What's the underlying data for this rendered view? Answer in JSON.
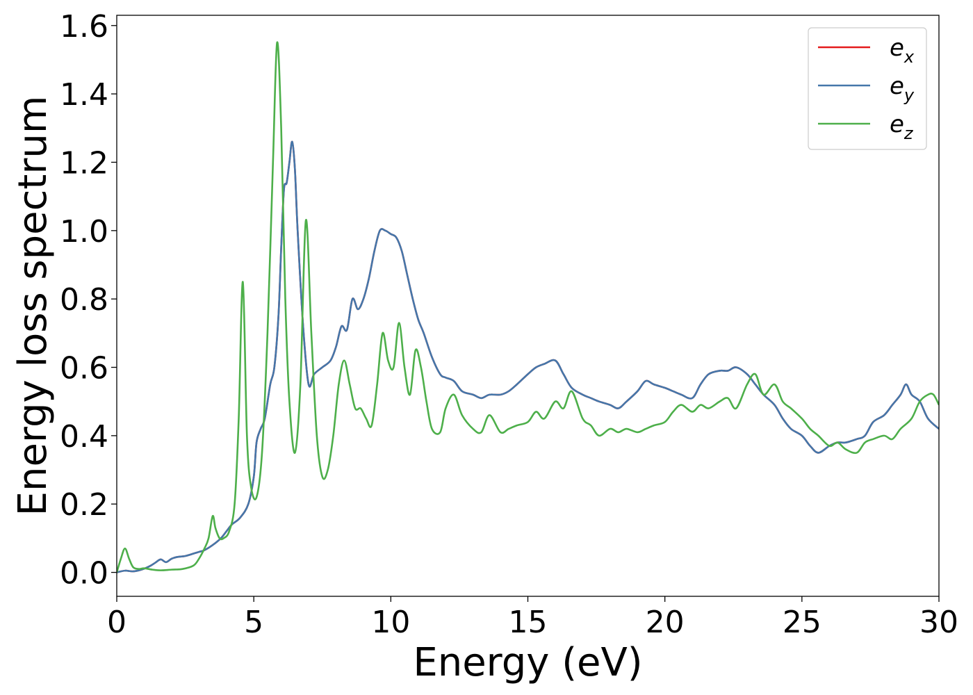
{
  "chart_data": {
    "type": "line",
    "title": "",
    "xlabel": "Energy (eV)",
    "ylabel": "Energy loss spectrum",
    "xlim": [
      0,
      30
    ],
    "ylim": [
      -0.07,
      1.63
    ],
    "xticks": [
      0,
      5,
      10,
      15,
      20,
      25,
      30
    ],
    "xtick_labels": [
      "0",
      "5",
      "10",
      "15",
      "20",
      "25",
      "30"
    ],
    "yticks": [
      0.0,
      0.2,
      0.4,
      0.6,
      0.8,
      1.0,
      1.2,
      1.4,
      1.6
    ],
    "ytick_labels": [
      "0.0",
      "0.2",
      "0.4",
      "0.6",
      "0.8",
      "1.0",
      "1.2",
      "1.4",
      "1.6"
    ],
    "grid": false,
    "legend_position": "top-right",
    "series": [
      {
        "name": "e_x",
        "legend_base": "e",
        "legend_sub": "x",
        "color": "#e41a1c",
        "x": [
          0,
          0.3,
          0.6,
          0.9,
          1.2,
          1.4,
          1.6,
          1.8,
          2.0,
          2.2,
          2.5,
          2.8,
          3.0,
          3.2,
          3.5,
          3.8,
          4.0,
          4.2,
          4.5,
          4.8,
          5.0,
          5.1,
          5.25,
          5.4,
          5.6,
          5.75,
          5.9,
          6.0,
          6.1,
          6.2,
          6.3,
          6.4,
          6.5,
          6.6,
          6.8,
          7.0,
          7.2,
          7.5,
          7.8,
          8.0,
          8.2,
          8.4,
          8.6,
          8.8,
          9.0,
          9.2,
          9.4,
          9.6,
          9.8,
          10.0,
          10.2,
          10.4,
          10.6,
          10.8,
          11.0,
          11.2,
          11.5,
          11.8,
          12.0,
          12.3,
          12.6,
          13.0,
          13.3,
          13.6,
          14.0,
          14.3,
          14.6,
          15.0,
          15.3,
          15.6,
          16.0,
          16.3,
          16.6,
          17.0,
          17.3,
          17.6,
          18.0,
          18.3,
          18.6,
          19.0,
          19.3,
          19.6,
          20.0,
          20.3,
          20.6,
          21.0,
          21.3,
          21.6,
          22.0,
          22.3,
          22.6,
          23.0,
          23.3,
          23.6,
          24.0,
          24.3,
          24.6,
          25.0,
          25.3,
          25.6,
          26.0,
          26.3,
          26.6,
          27.0,
          27.3,
          27.6,
          28.0,
          28.3,
          28.6,
          28.8,
          29.0,
          29.3,
          29.6,
          30.0
        ],
        "y": [
          0.0,
          0.005,
          0.003,
          0.008,
          0.018,
          0.028,
          0.038,
          0.03,
          0.04,
          0.045,
          0.048,
          0.055,
          0.06,
          0.065,
          0.08,
          0.1,
          0.12,
          0.14,
          0.16,
          0.2,
          0.28,
          0.38,
          0.42,
          0.45,
          0.55,
          0.6,
          0.75,
          0.95,
          1.12,
          1.14,
          1.2,
          1.26,
          1.18,
          1.0,
          0.72,
          0.55,
          0.58,
          0.6,
          0.62,
          0.66,
          0.72,
          0.71,
          0.8,
          0.77,
          0.8,
          0.86,
          0.94,
          1.0,
          1.0,
          0.99,
          0.98,
          0.94,
          0.87,
          0.8,
          0.74,
          0.7,
          0.63,
          0.58,
          0.57,
          0.56,
          0.53,
          0.52,
          0.51,
          0.52,
          0.52,
          0.53,
          0.55,
          0.58,
          0.6,
          0.61,
          0.62,
          0.58,
          0.54,
          0.52,
          0.51,
          0.5,
          0.49,
          0.48,
          0.5,
          0.53,
          0.56,
          0.55,
          0.54,
          0.53,
          0.52,
          0.51,
          0.55,
          0.58,
          0.59,
          0.59,
          0.6,
          0.58,
          0.55,
          0.52,
          0.49,
          0.45,
          0.42,
          0.4,
          0.37,
          0.35,
          0.37,
          0.38,
          0.38,
          0.39,
          0.4,
          0.44,
          0.46,
          0.49,
          0.52,
          0.55,
          0.52,
          0.5,
          0.45,
          0.42
        ]
      },
      {
        "name": "e_y",
        "legend_base": "e",
        "legend_sub": "y",
        "color": "#4477aa",
        "x": [
          0,
          0.3,
          0.6,
          0.9,
          1.2,
          1.4,
          1.6,
          1.8,
          2.0,
          2.2,
          2.5,
          2.8,
          3.0,
          3.2,
          3.5,
          3.8,
          4.0,
          4.2,
          4.5,
          4.8,
          5.0,
          5.1,
          5.25,
          5.4,
          5.6,
          5.75,
          5.9,
          6.0,
          6.1,
          6.2,
          6.3,
          6.4,
          6.5,
          6.6,
          6.8,
          7.0,
          7.2,
          7.5,
          7.8,
          8.0,
          8.2,
          8.4,
          8.6,
          8.8,
          9.0,
          9.2,
          9.4,
          9.6,
          9.8,
          10.0,
          10.2,
          10.4,
          10.6,
          10.8,
          11.0,
          11.2,
          11.5,
          11.8,
          12.0,
          12.3,
          12.6,
          13.0,
          13.3,
          13.6,
          14.0,
          14.3,
          14.6,
          15.0,
          15.3,
          15.6,
          16.0,
          16.3,
          16.6,
          17.0,
          17.3,
          17.6,
          18.0,
          18.3,
          18.6,
          19.0,
          19.3,
          19.6,
          20.0,
          20.3,
          20.6,
          21.0,
          21.3,
          21.6,
          22.0,
          22.3,
          22.6,
          23.0,
          23.3,
          23.6,
          24.0,
          24.3,
          24.6,
          25.0,
          25.3,
          25.6,
          26.0,
          26.3,
          26.6,
          27.0,
          27.3,
          27.6,
          28.0,
          28.3,
          28.6,
          28.8,
          29.0,
          29.3,
          29.6,
          30.0
        ],
        "y": [
          0.0,
          0.005,
          0.003,
          0.008,
          0.018,
          0.028,
          0.038,
          0.03,
          0.04,
          0.045,
          0.048,
          0.055,
          0.06,
          0.065,
          0.08,
          0.1,
          0.12,
          0.14,
          0.16,
          0.2,
          0.28,
          0.38,
          0.42,
          0.45,
          0.55,
          0.6,
          0.75,
          0.95,
          1.12,
          1.14,
          1.2,
          1.26,
          1.18,
          1.0,
          0.72,
          0.55,
          0.58,
          0.6,
          0.62,
          0.66,
          0.72,
          0.71,
          0.8,
          0.77,
          0.8,
          0.86,
          0.94,
          1.0,
          1.0,
          0.99,
          0.98,
          0.94,
          0.87,
          0.8,
          0.74,
          0.7,
          0.63,
          0.58,
          0.57,
          0.56,
          0.53,
          0.52,
          0.51,
          0.52,
          0.52,
          0.53,
          0.55,
          0.58,
          0.6,
          0.61,
          0.62,
          0.58,
          0.54,
          0.52,
          0.51,
          0.5,
          0.49,
          0.48,
          0.5,
          0.53,
          0.56,
          0.55,
          0.54,
          0.53,
          0.52,
          0.51,
          0.55,
          0.58,
          0.59,
          0.59,
          0.6,
          0.58,
          0.55,
          0.52,
          0.49,
          0.45,
          0.42,
          0.4,
          0.37,
          0.35,
          0.37,
          0.38,
          0.38,
          0.39,
          0.4,
          0.44,
          0.46,
          0.49,
          0.52,
          0.55,
          0.52,
          0.5,
          0.45,
          0.42
        ]
      },
      {
        "name": "e_z",
        "legend_base": "e",
        "legend_sub": "z",
        "color": "#4daf4a",
        "x": [
          0,
          0.15,
          0.3,
          0.45,
          0.6,
          0.8,
          1.0,
          1.3,
          1.6,
          2.0,
          2.4,
          2.8,
          3.0,
          3.2,
          3.35,
          3.5,
          3.6,
          3.75,
          3.9,
          4.1,
          4.3,
          4.45,
          4.6,
          4.75,
          4.9,
          5.1,
          5.3,
          5.5,
          5.7,
          5.85,
          6.0,
          6.15,
          6.3,
          6.5,
          6.7,
          6.9,
          7.1,
          7.3,
          7.5,
          7.7,
          7.9,
          8.1,
          8.3,
          8.5,
          8.7,
          8.9,
          9.1,
          9.3,
          9.5,
          9.7,
          9.9,
          10.1,
          10.3,
          10.5,
          10.7,
          10.9,
          11.1,
          11.3,
          11.5,
          11.8,
          12.0,
          12.3,
          12.6,
          13.0,
          13.3,
          13.6,
          14.0,
          14.3,
          14.6,
          15.0,
          15.3,
          15.6,
          16.0,
          16.3,
          16.6,
          17.0,
          17.3,
          17.6,
          18.0,
          18.3,
          18.6,
          19.0,
          19.3,
          19.6,
          20.0,
          20.3,
          20.6,
          21.0,
          21.3,
          21.6,
          22.0,
          22.3,
          22.6,
          23.0,
          23.3,
          23.6,
          24.0,
          24.3,
          24.6,
          25.0,
          25.3,
          25.6,
          26.0,
          26.3,
          26.6,
          27.0,
          27.3,
          27.6,
          28.0,
          28.3,
          28.6,
          29.0,
          29.3,
          29.6,
          29.8,
          30.0
        ],
        "y": [
          0.0,
          0.04,
          0.07,
          0.04,
          0.015,
          0.01,
          0.012,
          0.008,
          0.006,
          0.008,
          0.01,
          0.02,
          0.04,
          0.07,
          0.1,
          0.165,
          0.13,
          0.1,
          0.1,
          0.12,
          0.2,
          0.45,
          0.85,
          0.4,
          0.25,
          0.22,
          0.35,
          0.7,
          1.2,
          1.55,
          1.3,
          0.8,
          0.5,
          0.35,
          0.55,
          1.03,
          0.7,
          0.4,
          0.28,
          0.3,
          0.4,
          0.55,
          0.62,
          0.55,
          0.48,
          0.48,
          0.45,
          0.43,
          0.55,
          0.7,
          0.62,
          0.6,
          0.73,
          0.6,
          0.52,
          0.65,
          0.6,
          0.5,
          0.42,
          0.41,
          0.48,
          0.52,
          0.46,
          0.42,
          0.41,
          0.46,
          0.41,
          0.42,
          0.43,
          0.44,
          0.47,
          0.45,
          0.5,
          0.48,
          0.53,
          0.45,
          0.43,
          0.4,
          0.42,
          0.41,
          0.42,
          0.41,
          0.42,
          0.43,
          0.44,
          0.47,
          0.49,
          0.47,
          0.49,
          0.48,
          0.5,
          0.51,
          0.48,
          0.55,
          0.58,
          0.52,
          0.55,
          0.5,
          0.48,
          0.45,
          0.42,
          0.4,
          0.37,
          0.38,
          0.36,
          0.35,
          0.38,
          0.39,
          0.4,
          0.39,
          0.42,
          0.45,
          0.5,
          0.52,
          0.52,
          0.49
        ]
      }
    ]
  }
}
